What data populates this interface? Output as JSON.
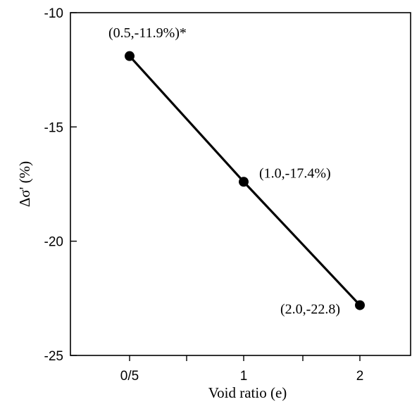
{
  "chart_data": {
    "type": "line",
    "xlabel": "Void ratio (e)",
    "ylabel": "Δσ' (%)",
    "x_tick_labels": [
      "0/5",
      "1",
      "2"
    ],
    "y_ticks": [
      -10,
      -15,
      -20,
      -25
    ],
    "ylim": [
      -25,
      -10
    ],
    "grid": false,
    "series": [
      {
        "x": [
          0.5,
          1.0,
          2.0
        ],
        "y": [
          -11.9,
          -17.4,
          -22.8
        ],
        "labels": [
          "(0.5,-11.9%)*",
          "(1.0,-17.4%)",
          "(2.0,-22.8)"
        ]
      }
    ],
    "colors": {
      "line": "#000000",
      "marker": "#000000"
    }
  }
}
